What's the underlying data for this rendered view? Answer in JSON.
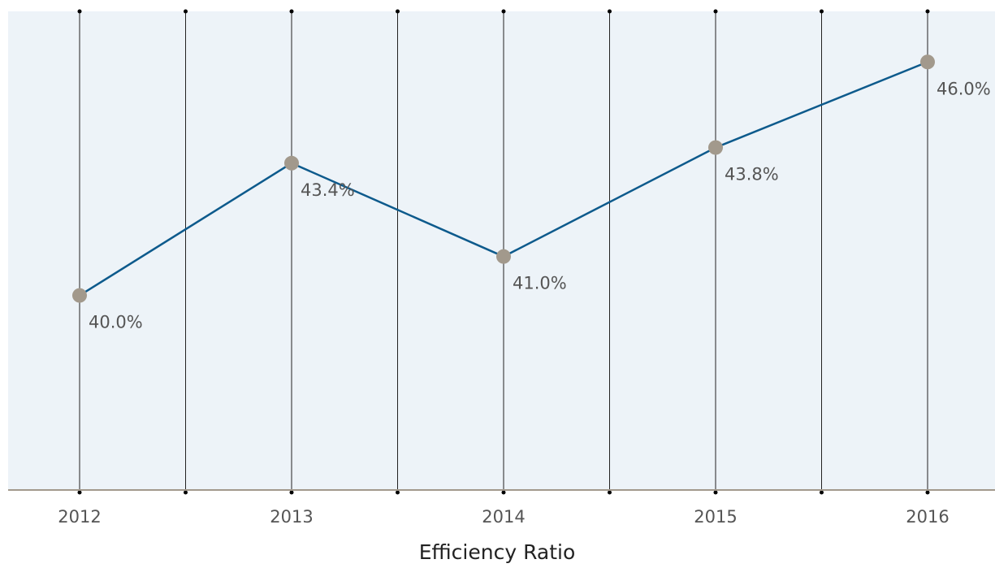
{
  "chart_data": {
    "type": "line",
    "title": "Efficiency Ratio",
    "categories": [
      "2012",
      "2013",
      "2014",
      "2015",
      "2016"
    ],
    "series": [
      {
        "color": "#0d5a8c",
        "values": [
          40.0,
          43.4,
          41.0,
          43.8,
          46.0
        ],
        "value_labels": [
          "40.0%",
          "43.4%",
          "41.0%",
          "43.8%",
          "46.0%"
        ]
      }
    ],
    "marker_color": "#a2998c",
    "ylim": [
      35,
      47.3
    ]
  }
}
